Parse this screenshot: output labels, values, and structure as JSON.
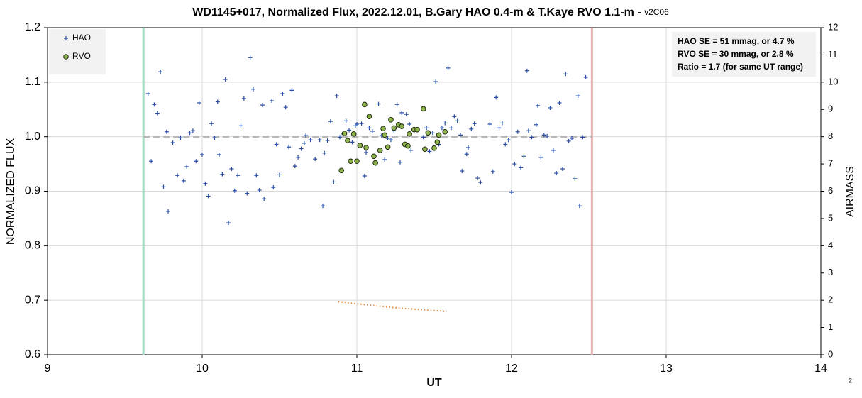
{
  "chart_data": {
    "type": "scatter",
    "title": "WD1145+017, Normalized Flux, 2022.12.01, B.Gary HAO 0.4-m & T.Kaye RVO 1.1-m - ",
    "title_suffix": "v2C06",
    "x_label": "UT",
    "y_label": "NORMALIZED FLUX",
    "y2_label": "AIRMASS",
    "corner_note": "2",
    "annotation": [
      "HAO SE = 51 mmag, or 4.7 %",
      "RVO SE = 30 mmag, or 2.8 %",
      "Ratio = 1.7 (for same UT range)"
    ],
    "xlim": [
      9,
      14
    ],
    "xticks": [
      9,
      10,
      11,
      12,
      13,
      14
    ],
    "ylim": [
      0.6,
      1.2
    ],
    "yticks": [
      0.6,
      0.7,
      0.8,
      0.9,
      {
        "value": 1,
        "label": "1.0"
      },
      1.1,
      1.2
    ],
    "y2lim": [
      0,
      12
    ],
    "y2ticks": [
      0,
      1,
      2,
      3,
      4,
      5,
      6,
      7,
      8,
      9,
      10,
      11,
      12
    ],
    "grid": true,
    "legend": "top-left",
    "vlines": [
      {
        "x": 9.62,
        "color": "#a6dcc4"
      },
      {
        "x": 12.52,
        "color": "#eab0b0"
      }
    ],
    "hline": {
      "y": 1,
      "from": 9.62,
      "to": 12.52,
      "color": "#b8b8b8"
    },
    "series": [
      {
        "name": "HAO",
        "marker": "plus",
        "color": "#2a4ea6",
        "x": [
          9.65,
          9.67,
          9.69,
          9.71,
          9.73,
          9.75,
          9.77,
          9.78,
          9.81,
          9.84,
          9.86,
          9.88,
          9.9,
          9.92,
          9.94,
          9.96,
          9.98,
          10,
          10.02,
          10.04,
          10.06,
          10.08,
          10.1,
          10.11,
          10.13,
          10.15,
          10.17,
          10.19,
          10.21,
          10.23,
          10.25,
          10.27,
          10.29,
          10.31,
          10.33,
          10.35,
          10.37,
          10.39,
          10.4,
          10.45,
          10.46,
          10.48,
          10.5,
          10.52,
          10.54,
          10.56,
          10.58,
          10.6,
          10.62,
          10.64,
          10.66,
          10.67,
          10.7,
          10.73,
          10.76,
          10.78,
          10.79,
          10.81,
          10.83,
          10.85,
          10.87,
          10.89,
          10.91,
          10.93,
          10.95,
          10.97,
          10.99,
          11,
          11.03,
          11.05,
          11.06,
          11.08,
          11.1,
          11.12,
          11.14,
          11.16,
          11.18,
          11.2,
          11.22,
          11.24,
          11.26,
          11.28,
          11.29,
          11.32,
          11.34,
          11.35,
          11.43,
          11.45,
          11.47,
          11.49,
          11.51,
          11.53,
          11.55,
          11.57,
          11.59,
          11.61,
          11.63,
          11.65,
          11.67,
          11.68,
          11.71,
          11.72,
          11.74,
          11.76,
          11.78,
          11.8,
          11.86,
          11.88,
          11.9,
          11.92,
          11.94,
          11.96,
          11.98,
          12,
          12.02,
          12.04,
          12.06,
          12.08,
          12.1,
          12.11,
          12.13,
          12.16,
          12.17,
          12.19,
          12.21,
          12.23,
          12.25,
          12.27,
          12.29,
          12.31,
          12.33,
          12.35,
          12.37,
          12.39,
          12.41,
          12.43,
          12.44,
          12.46,
          12.48
        ],
        "values": [
          1.079,
          0.955,
          1.059,
          1.043,
          1.119,
          0.908,
          1.009,
          0.863,
          0.989,
          0.929,
          0.998,
          0.919,
          0.945,
          1.007,
          1.011,
          0.955,
          1.062,
          0.967,
          0.914,
          0.891,
          1.024,
          0.998,
          1.064,
          0.967,
          0.931,
          1.105,
          0.842,
          0.941,
          0.901,
          0.929,
          1.02,
          1.07,
          0.896,
          1.145,
          1.087,
          0.929,
          0.902,
          1.058,
          0.886,
          1.066,
          0.907,
          0.986,
          0.93,
          1.079,
          1.054,
          0.981,
          1.085,
          0.946,
          0.962,
          0.978,
          0.988,
          1.002,
          0.994,
          0.959,
          0.994,
          0.873,
          0.97,
          0.993,
          1.028,
          0.917,
          1.075,
          0.999,
          1.005,
          1.029,
          1.012,
          0.99,
          1.02,
          1.023,
          1.024,
          0.928,
          0.971,
          1.016,
          1.01,
          0.95,
          1.06,
          1.002,
          0.958,
          0.997,
          0.994,
          1.011,
          1.059,
          0.953,
          1.044,
          1.041,
          1.023,
          0.975,
          0.999,
          1.016,
          0.973,
          1.007,
          1.101,
          0.986,
          1.016,
          1.025,
          1.126,
          1.016,
          1.037,
          1.029,
          1.003,
          0.937,
          0.968,
          0.98,
          1.014,
          1.024,
          0.924,
          0.916,
          1.023,
          0.936,
          1.072,
          1.016,
          1.025,
          0.986,
          0.994,
          0.898,
          0.95,
          1.009,
          0.943,
          0.964,
          1.121,
          1.011,
          0.999,
          1.022,
          1.057,
          0.962,
          1.003,
          1.001,
          1.053,
          0.975,
          0.933,
          1.062,
          0.941,
          1.115,
          0.992,
          0.997,
          0.923,
          1.075,
          0.873,
          0.999,
          1.109
        ]
      },
      {
        "name": "RVO",
        "marker": "circle",
        "color": "#8fb34c",
        "x": [
          10.9,
          10.92,
          10.94,
          10.96,
          10.98,
          11,
          11.02,
          11.05,
          11.06,
          11.08,
          11.11,
          11.12,
          11.15,
          11.17,
          11.18,
          11.2,
          11.22,
          11.24,
          11.27,
          11.29,
          11.31,
          11.33,
          11.34,
          11.37,
          11.39,
          11.43,
          11.44,
          11.46,
          11.5,
          11.52,
          11.53,
          11.57
        ],
        "values": [
          0.938,
          1.006,
          0.993,
          0.955,
          1.005,
          0.955,
          0.984,
          1.059,
          0.98,
          1.037,
          0.964,
          0.952,
          0.975,
          1.015,
          1.003,
          0.981,
          1.031,
          1.016,
          1.022,
          1.019,
          0.986,
          0.983,
          1.005,
          1.013,
          1.013,
          1.051,
          0.977,
          1.007,
          0.979,
          0.99,
          1.003,
          1.009
        ]
      },
      {
        "name": "Airmass",
        "marker": "dotted-line",
        "axis": "y2",
        "color": "#e08a3c",
        "x": [
          10.88,
          11,
          11.1,
          11.2,
          11.3,
          11.4,
          11.5,
          11.58
        ],
        "values": [
          1.95,
          1.87,
          1.81,
          1.75,
          1.7,
          1.66,
          1.62,
          1.59
        ]
      }
    ]
  }
}
